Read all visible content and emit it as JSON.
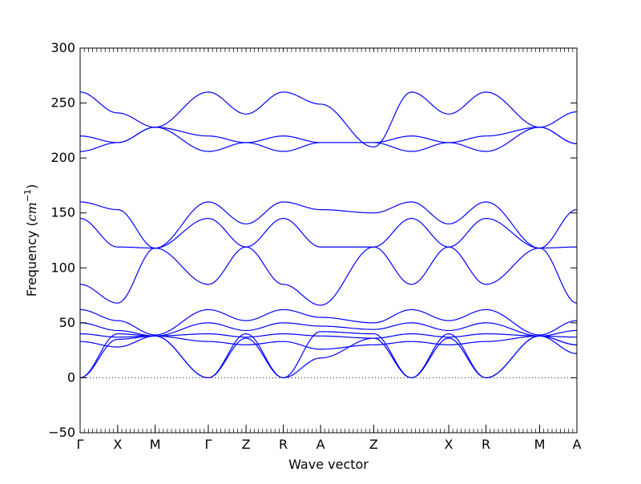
{
  "chart_data": {
    "type": "line",
    "title": "",
    "xlabel": "Wave vector",
    "ylabel_text": "Frequency (",
    "ylabel_unit": "cm",
    "ylabel_exp": "−1",
    "ylabel_close": ")",
    "ylim": [
      -50,
      300
    ],
    "yticks": [
      -50,
      0,
      50,
      100,
      150,
      200,
      250,
      300
    ],
    "ytick_labels": [
      "−50",
      "0",
      "50",
      "100",
      "150",
      "200",
      "250",
      "300"
    ],
    "xlim": [
      0,
      1
    ],
    "high_symmetry_points": [
      {
        "label": "Γ",
        "x": 0.0
      },
      {
        "label": "X",
        "x": 0.0755
      },
      {
        "label": "M",
        "x": 0.151
      },
      {
        "label": "Γ",
        "x": 0.258
      },
      {
        "label": "Z",
        "x": 0.334
      },
      {
        "label": "R",
        "x": 0.409
      },
      {
        "label": "A",
        "x": 0.484
      },
      {
        "label": "Z",
        "x": 0.591
      },
      {
        "label": "X",
        "x": 0.742
      },
      {
        "label": "R",
        "x": 0.817
      },
      {
        "label": "M",
        "x": 0.925
      },
      {
        "label": "A",
        "x": 1.0
      }
    ],
    "zero_line": {
      "y": 0,
      "style": "dotted"
    },
    "line_color": "#0000ff",
    "series": [
      {
        "x": [
          0.0,
          0.0755,
          0.151,
          0.258,
          0.334,
          0.409,
          0.484,
          0.591,
          0.667,
          0.742,
          0.817,
          0.925,
          1.0
        ],
        "values": [
          260,
          241,
          228,
          260,
          240,
          260,
          249,
          210,
          260,
          240,
          260,
          228,
          242
        ]
      },
      {
        "x": [
          0.0,
          0.0755,
          0.151,
          0.258,
          0.334,
          0.409,
          0.484,
          0.591,
          0.667,
          0.742,
          0.817,
          0.925,
          1.0
        ],
        "values": [
          220,
          214,
          228,
          220,
          214,
          220,
          214,
          214,
          220,
          214,
          220,
          228,
          213
        ]
      },
      {
        "x": [
          0.0,
          0.0755,
          0.151,
          0.258,
          0.334,
          0.409,
          0.484,
          0.591,
          0.667,
          0.742,
          0.817,
          0.925,
          1.0
        ],
        "values": [
          206,
          214,
          228,
          206,
          214,
          206,
          214,
          214,
          206,
          214,
          206,
          228,
          213
        ]
      },
      {
        "x": [
          0.0,
          0.0755,
          0.151,
          0.258,
          0.334,
          0.409,
          0.484,
          0.591,
          0.667,
          0.742,
          0.817,
          0.925,
          1.0
        ],
        "values": [
          160,
          153,
          118,
          160,
          140,
          160,
          153,
          150,
          160,
          140,
          160,
          118,
          153
        ]
      },
      {
        "x": [
          0.0,
          0.0755,
          0.151,
          0.258,
          0.334,
          0.409,
          0.484,
          0.591,
          0.667,
          0.742,
          0.817,
          0.925,
          1.0
        ],
        "values": [
          145,
          119,
          118,
          145,
          119,
          145,
          119,
          119,
          145,
          119,
          145,
          118,
          119
        ]
      },
      {
        "x": [
          0.0,
          0.0755,
          0.151,
          0.258,
          0.334,
          0.409,
          0.484,
          0.591,
          0.667,
          0.742,
          0.817,
          0.925,
          1.0
        ],
        "values": [
          85,
          68,
          118,
          85,
          119,
          85,
          66,
          119,
          85,
          119,
          85,
          118,
          68
        ]
      },
      {
        "x": [
          0.0,
          0.0755,
          0.151,
          0.258,
          0.334,
          0.409,
          0.484,
          0.591,
          0.667,
          0.742,
          0.817,
          0.925,
          1.0
        ],
        "values": [
          62,
          52,
          39,
          62,
          52,
          62,
          55,
          50,
          62,
          52,
          62,
          39,
          52
        ]
      },
      {
        "x": [
          0.0,
          0.0755,
          0.151,
          0.258,
          0.334,
          0.409,
          0.484,
          0.591,
          0.667,
          0.742,
          0.817,
          0.925,
          1.0
        ],
        "values": [
          50,
          43,
          38,
          50,
          43,
          50,
          47,
          44,
          50,
          43,
          50,
          38,
          43
        ]
      },
      {
        "x": [
          0.0,
          0.0755,
          0.151,
          0.258,
          0.334,
          0.409,
          0.484,
          0.591,
          0.667,
          0.742,
          0.817,
          0.925,
          1.0
        ],
        "values": [
          40,
          37,
          38,
          40,
          37,
          40,
          38,
          36,
          40,
          37,
          40,
          38,
          37
        ]
      },
      {
        "x": [
          0.0,
          0.0755,
          0.151,
          0.258,
          0.334,
          0.409,
          0.484,
          0.591,
          0.667,
          0.742,
          0.817,
          0.925,
          1.0
        ],
        "values": [
          33,
          28,
          38,
          33,
          30,
          33,
          26,
          30,
          33,
          30,
          33,
          38,
          30
        ]
      },
      {
        "x": [
          0.0,
          0.0755,
          0.151,
          0.258,
          0.334,
          0.409,
          0.484,
          0.591,
          0.667,
          0.742,
          0.817,
          0.925,
          1.0
        ],
        "values": [
          0,
          40,
          38,
          0,
          40,
          0,
          42,
          40,
          0,
          40,
          0,
          38,
          22
        ]
      },
      {
        "x": [
          0.0,
          0.0755,
          0.151,
          0.258,
          0.334,
          0.409,
          0.484,
          0.591,
          0.667,
          0.742,
          0.817,
          0.925,
          1.0
        ],
        "values": [
          0,
          35,
          38,
          0,
          36,
          0,
          18,
          36,
          0,
          36,
          0,
          38,
          30
        ]
      }
    ]
  }
}
